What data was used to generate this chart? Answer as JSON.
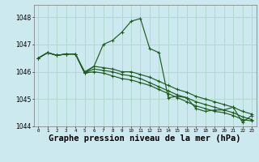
{
  "background_color": "#cde9f0",
  "grid_color": "#b0d8cc",
  "line_color": "#1e5c1e",
  "marker_color": "#1e5c1e",
  "xlabel": "Graphe pression niveau de la mer (hPa)",
  "xlabel_fontsize": 7.5,
  "ylim": [
    1044.0,
    1048.45
  ],
  "xlim": [
    -0.5,
    23.5
  ],
  "yticks": [
    1044,
    1045,
    1046,
    1047,
    1048
  ],
  "xticks": [
    0,
    1,
    2,
    3,
    4,
    5,
    6,
    7,
    8,
    9,
    10,
    11,
    12,
    13,
    14,
    15,
    16,
    17,
    18,
    19,
    20,
    21,
    22,
    23
  ],
  "series": [
    [
      1046.5,
      1046.7,
      1046.6,
      1046.65,
      1046.65,
      1045.95,
      1046.2,
      1047.0,
      1047.15,
      1047.45,
      1047.85,
      1047.95,
      1046.85,
      1046.7,
      1045.05,
      1045.1,
      1045.05,
      1044.65,
      1044.55,
      1044.6,
      1044.6,
      1044.7,
      1044.15,
      1044.4
    ],
    [
      1046.5,
      1046.7,
      1046.6,
      1046.65,
      1046.65,
      1046.0,
      1046.2,
      1046.15,
      1046.1,
      1046.0,
      1046.0,
      1045.9,
      1045.8,
      1045.65,
      1045.5,
      1045.35,
      1045.25,
      1045.1,
      1045.0,
      1044.9,
      1044.8,
      1044.7,
      1044.55,
      1044.45
    ],
    [
      1046.5,
      1046.7,
      1046.6,
      1046.65,
      1046.65,
      1045.95,
      1046.1,
      1046.05,
      1046.0,
      1045.9,
      1045.85,
      1045.75,
      1045.6,
      1045.45,
      1045.3,
      1045.15,
      1045.05,
      1044.9,
      1044.8,
      1044.7,
      1044.6,
      1044.5,
      1044.35,
      1044.25
    ],
    [
      1046.5,
      1046.7,
      1046.6,
      1046.65,
      1046.65,
      1045.95,
      1046.0,
      1045.95,
      1045.85,
      1045.75,
      1045.7,
      1045.6,
      1045.5,
      1045.35,
      1045.2,
      1045.05,
      1044.9,
      1044.75,
      1044.65,
      1044.55,
      1044.5,
      1044.4,
      1044.25,
      1044.2
    ]
  ]
}
